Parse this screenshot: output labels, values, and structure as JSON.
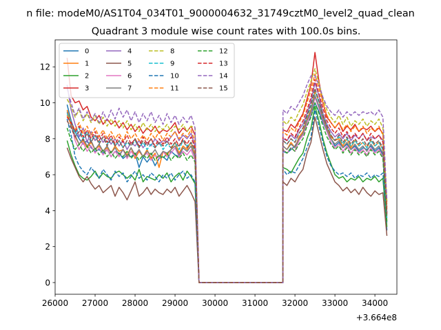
{
  "chart_data": {
    "type": "line",
    "suptitle": "n file: modeM0/AS1T04_034T01_9000004632_31749cztM0_level2_quad_clean",
    "title": "Quadrant 3 module wise count rates with 100.0s bins.",
    "xlabel": "",
    "ylabel": "",
    "x_offset_label": "+3.664e8",
    "xlim": [
      26000,
      34550
    ],
    "ylim": [
      -0.65,
      13.5
    ],
    "x_ticks": [
      26000,
      27000,
      28000,
      29000,
      30000,
      31000,
      32000,
      33000,
      34000
    ],
    "x_tick_labels": [
      "26000",
      "27000",
      "28000",
      "29000",
      "30000",
      "31000",
      "32000",
      "33000",
      "34000"
    ],
    "y_ticks": [
      0,
      2,
      4,
      6,
      8,
      10,
      12
    ],
    "y_tick_labels": [
      "0",
      "2",
      "4",
      "6",
      "8",
      "10",
      "12"
    ],
    "legend_position": "top-left",
    "legend_columns": 4,
    "gap_range": [
      29600,
      31700
    ],
    "first_segment": {
      "start": 26300,
      "end": 29500,
      "step": 100,
      "gap_start_x": 29600
    },
    "second_segment": {
      "start": 31700,
      "end": 34200,
      "step": 100
    },
    "series": [
      {
        "name": "0",
        "color": "#1f77b4",
        "dash": false,
        "seg1": [
          9.9,
          9.0,
          8.4,
          8.0,
          7.7,
          7.9,
          7.5,
          7.3,
          7.4,
          7.2,
          7.4,
          7.0,
          7.3,
          7.2,
          6.9,
          7.1,
          7.0,
          7.2,
          6.4,
          7.0,
          6.7,
          7.0,
          6.5,
          6.9,
          7.0,
          6.8,
          7.3,
          7.1,
          7.0,
          7.5,
          7.3,
          7.6,
          7.0
        ],
        "seg2": [
          7.3,
          7.2,
          7.4,
          7.6,
          8.0,
          8.3,
          8.8,
          9.3,
          10.0,
          9.5,
          8.9,
          8.4,
          8.0,
          7.6,
          7.8,
          7.5,
          7.7,
          7.4,
          7.6,
          7.3,
          7.5,
          7.4,
          7.6,
          7.3,
          7.5,
          7.1,
          2.9
        ]
      },
      {
        "name": "1",
        "color": "#ff7f0e",
        "dash": false,
        "seg1": [
          9.6,
          8.9,
          8.1,
          7.7,
          7.9,
          7.5,
          7.8,
          7.4,
          7.6,
          7.3,
          7.5,
          7.2,
          7.6,
          7.3,
          7.4,
          7.1,
          7.5,
          6.9,
          7.3,
          7.0,
          7.4,
          6.9,
          7.2,
          6.4,
          7.3,
          7.1,
          7.4,
          7.8,
          7.2,
          7.6,
          7.4,
          7.8,
          7.1
        ],
        "seg2": [
          7.6,
          7.4,
          7.8,
          7.5,
          8.1,
          8.4,
          9.1,
          9.6,
          10.6,
          10.1,
          9.2,
          8.6,
          8.1,
          7.9,
          8.0,
          7.6,
          8.0,
          7.5,
          7.9,
          7.6,
          7.8,
          7.5,
          7.9,
          7.6,
          7.8,
          7.4,
          4.2
        ]
      },
      {
        "name": "2",
        "color": "#2ca02c",
        "dash": false,
        "seg1": [
          7.9,
          7.1,
          6.5,
          6.0,
          5.8,
          5.7,
          5.9,
          6.2,
          5.8,
          6.1,
          5.9,
          5.8,
          6.1,
          6.2,
          6.0,
          5.8,
          6.0,
          5.7,
          6.3,
          5.6,
          5.9,
          5.8,
          5.7,
          6.0,
          5.8,
          6.1,
          5.6,
          5.9,
          6.1,
          5.7,
          6.2,
          5.9,
          5.5
        ],
        "seg2": [
          6.4,
          6.3,
          6.1,
          6.5,
          6.9,
          7.2,
          8.0,
          8.6,
          9.8,
          9.0,
          8.0,
          7.2,
          6.6,
          6.0,
          5.8,
          5.9,
          5.6,
          5.8,
          5.7,
          5.9,
          5.6,
          5.8,
          5.7,
          5.9,
          5.6,
          5.8,
          3.1
        ]
      },
      {
        "name": "3",
        "color": "#d62728",
        "dash": false,
        "seg1": [
          12.5,
          10.4,
          10.0,
          10.1,
          9.6,
          9.8,
          9.2,
          9.0,
          9.3,
          8.8,
          9.1,
          8.8,
          9.0,
          8.6,
          8.9,
          8.5,
          8.8,
          8.4,
          8.7,
          8.3,
          8.6,
          8.4,
          8.7,
          8.3,
          8.5,
          8.4,
          8.6,
          8.9,
          8.3,
          8.6,
          8.4,
          8.7,
          8.2
        ],
        "seg2": [
          8.5,
          8.4,
          8.8,
          8.6,
          9.0,
          9.4,
          10.2,
          11.0,
          12.8,
          11.2,
          10.0,
          9.2,
          8.9,
          8.6,
          8.9,
          8.4,
          8.7,
          8.5,
          8.8,
          8.4,
          8.6,
          8.5,
          8.7,
          8.4,
          8.6,
          8.3,
          4.5
        ]
      },
      {
        "name": "4",
        "color": "#9467bd",
        "dash": false,
        "seg1": [
          11.0,
          9.6,
          8.8,
          8.1,
          8.6,
          7.8,
          8.4,
          7.9,
          8.2,
          7.8,
          8.1,
          7.7,
          8.0,
          7.6,
          7.9,
          7.4,
          7.8,
          7.6,
          7.9,
          7.5,
          7.8,
          7.6,
          8.0,
          7.7,
          7.9,
          7.8,
          8.1,
          8.4,
          7.9,
          8.2,
          8.0,
          8.3,
          7.6
        ],
        "seg2": [
          8.0,
          7.9,
          8.2,
          8.0,
          8.5,
          8.8,
          9.4,
          10.1,
          11.1,
          10.4,
          9.4,
          8.8,
          8.4,
          8.1,
          8.3,
          8.0,
          8.3,
          7.9,
          8.2,
          8.0,
          8.3,
          7.9,
          8.1,
          8.0,
          8.2,
          7.9,
          3.9
        ]
      },
      {
        "name": "5",
        "color": "#8c564b",
        "dash": false,
        "seg1": [
          7.5,
          6.9,
          6.4,
          5.9,
          5.6,
          5.9,
          5.5,
          5.2,
          5.4,
          5.0,
          5.2,
          5.4,
          4.8,
          5.3,
          5.0,
          4.6,
          5.1,
          5.6,
          4.8,
          5.0,
          5.3,
          4.9,
          5.2,
          5.0,
          4.9,
          5.2,
          5.0,
          5.3,
          4.8,
          5.1,
          5.4,
          5.0,
          4.5
        ],
        "seg2": [
          5.6,
          5.4,
          5.8,
          5.6,
          6.0,
          6.3,
          7.2,
          7.8,
          9.2,
          8.3,
          7.4,
          6.6,
          6.1,
          5.6,
          5.4,
          5.1,
          5.3,
          5.0,
          5.2,
          4.9,
          5.3,
          5.0,
          4.8,
          5.1,
          4.9,
          5.0,
          2.6
        ]
      },
      {
        "name": "6",
        "color": "#e377c2",
        "dash": false,
        "seg1": [
          9.3,
          8.8,
          7.9,
          7.4,
          7.8,
          7.3,
          7.6,
          7.2,
          7.5,
          7.1,
          7.4,
          7.0,
          7.3,
          7.0,
          7.4,
          6.9,
          7.3,
          7.0,
          7.4,
          7.0,
          7.2,
          6.8,
          7.1,
          6.9,
          7.3,
          7.0,
          7.2,
          7.5,
          7.0,
          7.3,
          7.1,
          7.4,
          6.8
        ],
        "seg2": [
          7.4,
          7.2,
          7.5,
          7.3,
          7.9,
          8.2,
          8.8,
          9.4,
          10.3,
          9.7,
          9.0,
          8.4,
          7.8,
          7.5,
          7.7,
          7.3,
          7.6,
          7.2,
          7.5,
          7.2,
          7.4,
          7.1,
          7.5,
          7.2,
          7.4,
          7.0,
          3.8
        ]
      },
      {
        "name": "7",
        "color": "#7f7f7f",
        "dash": false,
        "seg1": [
          9.5,
          8.7,
          8.2,
          7.7,
          8.0,
          7.6,
          7.9,
          7.4,
          7.7,
          7.3,
          7.6,
          7.2,
          7.5,
          7.1,
          7.4,
          7.0,
          7.5,
          7.1,
          7.4,
          7.0,
          7.3,
          7.1,
          7.4,
          7.0,
          7.3,
          7.2,
          7.4,
          7.6,
          7.1,
          7.5,
          7.3,
          7.6,
          7.0
        ],
        "seg2": [
          7.6,
          7.4,
          7.7,
          7.5,
          8.0,
          8.3,
          9.0,
          9.5,
          10.4,
          9.8,
          9.1,
          8.5,
          8.0,
          7.7,
          7.9,
          7.5,
          7.8,
          7.4,
          7.7,
          7.4,
          7.6,
          7.3,
          7.7,
          7.4,
          7.6,
          7.2,
          3.7
        ]
      },
      {
        "name": "8",
        "color": "#bcbd22",
        "dash": true,
        "seg1": [
          10.2,
          9.8,
          9.2,
          9.6,
          9.0,
          9.4,
          8.9,
          9.3,
          8.8,
          9.2,
          8.7,
          9.1,
          8.7,
          9.0,
          8.6,
          9.0,
          8.5,
          8.8,
          8.4,
          8.9,
          8.5,
          8.8,
          8.4,
          8.7,
          8.5,
          8.8,
          8.4,
          8.7,
          8.5,
          8.8,
          8.4,
          8.7,
          8.6
        ],
        "seg2": [
          9.0,
          8.8,
          9.2,
          9.0,
          9.5,
          9.9,
          10.6,
          11.2,
          11.9,
          11.1,
          10.2,
          9.6,
          9.2,
          8.9,
          9.3,
          8.8,
          9.2,
          8.7,
          9.0,
          8.8,
          9.1,
          8.7,
          9.0,
          8.8,
          9.1,
          8.6,
          4.4
        ]
      },
      {
        "name": "9",
        "color": "#17becf",
        "dash": true,
        "seg1": [
          9.4,
          8.9,
          8.3,
          8.6,
          8.0,
          8.4,
          7.9,
          8.2,
          7.8,
          8.1,
          7.7,
          8.0,
          7.6,
          7.9,
          7.5,
          7.8,
          7.6,
          7.9,
          7.5,
          7.8,
          7.4,
          7.7,
          7.5,
          7.8,
          7.4,
          7.7,
          7.5,
          7.8,
          7.4,
          7.9,
          7.6,
          7.8,
          7.3
        ],
        "seg2": [
          7.9,
          7.7,
          8.0,
          7.8,
          8.3,
          8.6,
          9.2,
          9.8,
          10.7,
          10.0,
          9.3,
          8.7,
          8.2,
          7.9,
          8.1,
          7.7,
          8.0,
          7.6,
          7.9,
          7.6,
          7.8,
          7.5,
          7.9,
          7.6,
          7.8,
          7.4,
          3.6
        ]
      },
      {
        "name": "10",
        "color": "#1f77b4",
        "dash": true,
        "seg1": [
          9.1,
          8.2,
          7.0,
          6.5,
          6.2,
          6.0,
          6.4,
          6.1,
          5.8,
          6.3,
          6.0,
          5.7,
          6.2,
          5.9,
          6.1,
          5.6,
          5.9,
          6.2,
          5.8,
          6.0,
          5.7,
          6.1,
          5.9,
          5.6,
          6.0,
          5.8,
          6.1,
          5.7,
          6.0,
          6.2,
          5.8,
          6.0,
          5.6
        ],
        "seg2": [
          6.3,
          6.0,
          6.2,
          6.1,
          6.5,
          6.9,
          7.5,
          8.1,
          9.6,
          8.7,
          7.8,
          7.0,
          6.5,
          6.2,
          6.0,
          6.1,
          5.9,
          6.1,
          5.8,
          6.0,
          5.9,
          6.1,
          5.8,
          6.0,
          5.9,
          6.1,
          3.3
        ]
      },
      {
        "name": "11",
        "color": "#ff7f0e",
        "dash": true,
        "seg1": [
          9.3,
          8.8,
          8.5,
          8.9,
          8.3,
          8.7,
          8.2,
          8.6,
          8.1,
          8.5,
          8.0,
          8.4,
          8.0,
          8.3,
          7.9,
          8.4,
          8.0,
          8.3,
          7.9,
          8.2,
          7.9,
          8.3,
          8.0,
          8.4,
          7.9,
          8.3,
          8.1,
          8.4,
          8.0,
          8.3,
          8.1,
          8.5,
          7.8
        ],
        "seg2": [
          8.4,
          8.2,
          8.6,
          8.4,
          8.9,
          9.3,
          10.0,
          10.7,
          11.6,
          10.8,
          10.0,
          9.3,
          8.9,
          8.6,
          8.9,
          8.5,
          8.8,
          8.4,
          8.7,
          8.4,
          8.7,
          8.3,
          8.6,
          8.4,
          8.7,
          8.2,
          4.1
        ]
      },
      {
        "name": "12",
        "color": "#2ca02c",
        "dash": true,
        "seg1": [
          8.6,
          7.9,
          7.4,
          7.7,
          7.3,
          7.6,
          7.2,
          7.5,
          7.1,
          7.4,
          7.0,
          7.3,
          6.9,
          7.2,
          7.0,
          7.3,
          6.9,
          7.2,
          6.8,
          7.1,
          6.9,
          7.2,
          6.8,
          7.1,
          6.9,
          7.2,
          6.8,
          7.1,
          6.9,
          7.2,
          6.8,
          7.1,
          6.7
        ],
        "seg2": [
          7.4,
          7.2,
          7.5,
          7.3,
          7.7,
          8.0,
          8.7,
          9.2,
          10.0,
          9.4,
          8.7,
          8.1,
          7.7,
          7.4,
          7.6,
          7.2,
          7.5,
          7.1,
          7.4,
          7.1,
          7.3,
          7.0,
          7.4,
          7.1,
          7.3,
          6.9,
          3.4
        ]
      },
      {
        "name": "13",
        "color": "#d62728",
        "dash": true,
        "seg1": [
          9.2,
          8.9,
          8.4,
          8.7,
          8.1,
          8.5,
          8.0,
          8.4,
          7.9,
          8.3,
          7.8,
          8.2,
          7.7,
          8.1,
          7.8,
          8.2,
          7.7,
          8.0,
          7.6,
          8.1,
          7.7,
          8.0,
          7.6,
          8.0,
          7.7,
          8.1,
          7.7,
          8.0,
          7.6,
          8.0,
          7.7,
          8.1,
          7.5
        ],
        "seg2": [
          8.1,
          7.9,
          8.3,
          8.1,
          8.6,
          9.0,
          9.6,
          10.3,
          11.3,
          10.5,
          9.7,
          9.0,
          8.6,
          8.3,
          8.6,
          8.1,
          8.4,
          8.0,
          8.3,
          8.0,
          8.3,
          7.9,
          8.3,
          8.0,
          8.2,
          7.8,
          3.9
        ]
      },
      {
        "name": "14",
        "color": "#9467bd",
        "dash": true,
        "seg1": [
          10.8,
          10.0,
          9.3,
          9.7,
          9.1,
          9.5,
          9.0,
          9.4,
          8.9,
          9.5,
          9.0,
          9.6,
          9.1,
          9.7,
          9.2,
          9.6,
          9.0,
          9.5,
          8.9,
          9.4,
          9.0,
          9.5,
          8.9,
          9.3,
          8.8,
          9.4,
          8.9,
          9.3,
          8.8,
          9.2,
          8.9,
          9.3,
          8.6
        ],
        "seg2": [
          9.6,
          9.4,
          9.8,
          9.6,
          10.0,
          10.4,
          11.0,
          11.5,
          11.5,
          11.0,
          10.3,
          9.8,
          9.5,
          9.3,
          9.6,
          9.2,
          9.5,
          9.3,
          9.5,
          9.3,
          9.5,
          9.4,
          9.5,
          9.3,
          9.6,
          9.2,
          4.6
        ]
      },
      {
        "name": "15",
        "color": "#8c564b",
        "dash": true,
        "seg1": [
          9.0,
          8.6,
          8.1,
          8.4,
          7.9,
          8.3,
          7.8,
          8.2,
          7.7,
          8.1,
          7.6,
          8.0,
          7.6,
          7.9,
          7.5,
          7.9,
          7.6,
          8.0,
          7.5,
          7.9,
          7.6,
          8.0,
          7.5,
          7.8,
          7.6,
          7.9,
          7.5,
          7.8,
          7.6,
          7.9,
          7.5,
          7.8,
          7.4
        ],
        "seg2": [
          7.9,
          7.7,
          8.0,
          7.8,
          8.3,
          8.6,
          9.3,
          9.9,
          10.8,
          10.1,
          9.3,
          8.7,
          8.2,
          7.9,
          8.2,
          7.8,
          8.1,
          7.7,
          8.0,
          7.7,
          8.0,
          7.6,
          8.0,
          7.7,
          7.9,
          7.5,
          3.8
        ]
      }
    ]
  }
}
